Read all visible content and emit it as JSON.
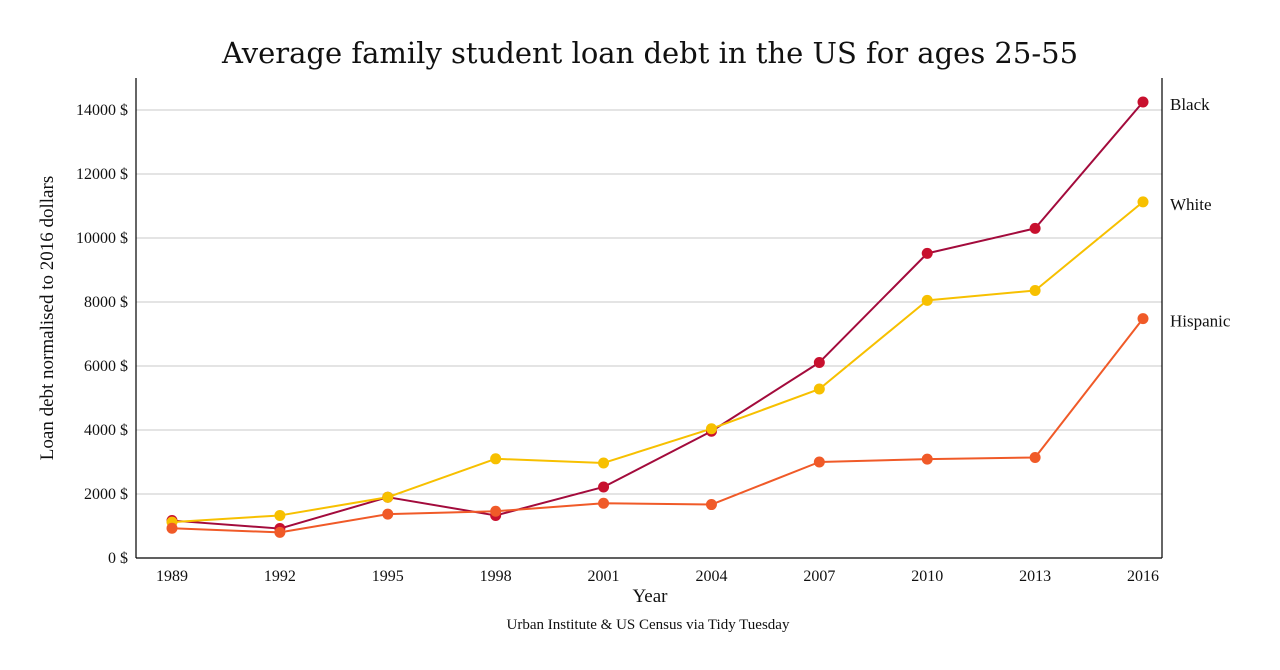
{
  "chart_data": {
    "type": "line",
    "title": "Average family student loan debt in the US for ages 25-55",
    "xlabel": "Year",
    "ylabel": "Loan debt normalised to 2016 dollars",
    "caption": "Urban Institute & US Census via Tidy Tuesday",
    "x": [
      1989,
      1992,
      1995,
      1998,
      2001,
      2004,
      2007,
      2010,
      2013,
      2016
    ],
    "x_tick_labels": [
      "1989",
      "1992",
      "1995",
      "1998",
      "2001",
      "2004",
      "2007",
      "2010",
      "2013",
      "2016"
    ],
    "ylim": [
      0,
      14000
    ],
    "y_ticks": [
      0,
      2000,
      4000,
      6000,
      8000,
      10000,
      12000,
      14000
    ],
    "y_tick_labels": [
      "0 $",
      "2000 $",
      "4000 $",
      "6000 $",
      "8000 $",
      "10000 $",
      "12000 $",
      "14000 $"
    ],
    "grid": "horizontal",
    "legend": "direct labels at right",
    "series": [
      {
        "name": "Black",
        "color": "#a30b3c",
        "point_color": "#c8102e",
        "values": [
          1170,
          920,
          1900,
          1330,
          2220,
          3960,
          6110,
          9520,
          10300,
          14250
        ]
      },
      {
        "name": "White",
        "color": "#f7c000",
        "point_color": "#f7c000",
        "values": [
          1120,
          1330,
          1900,
          3100,
          2970,
          4040,
          5280,
          8050,
          8360,
          11130
        ]
      },
      {
        "name": "Hispanic",
        "color": "#f05a28",
        "point_color": "#f05a28",
        "values": [
          930,
          800,
          1370,
          1460,
          1710,
          1670,
          3000,
          3090,
          3140,
          7480
        ]
      }
    ]
  }
}
